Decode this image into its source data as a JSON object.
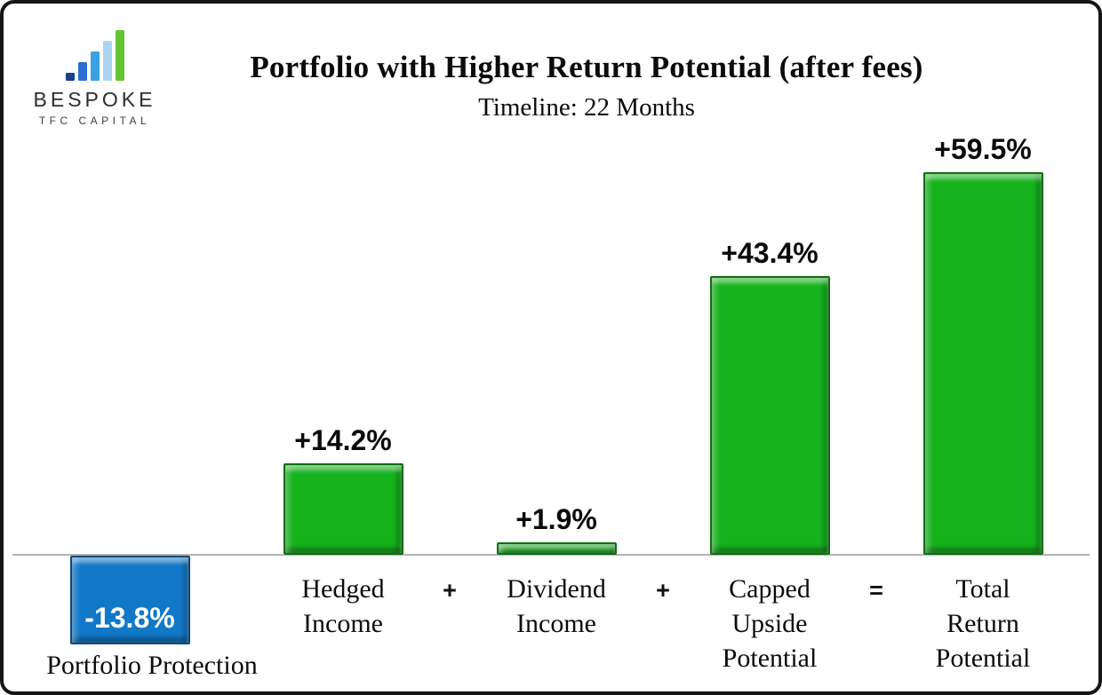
{
  "logo": {
    "name": "BESPOKE",
    "tagline": "TFC CAPITAL",
    "bar_colors": [
      "#17418F",
      "#2B6FD4",
      "#38A1E3",
      "#ABD4F0",
      "#63C433"
    ]
  },
  "header": {
    "title": "Portfolio with Higher Return Potential (after fees)",
    "subtitle": "Timeline: 22 Months"
  },
  "chart_data": {
    "type": "bar",
    "title": "Portfolio with Higher Return Potential (after fees)",
    "subtitle": "Timeline: 22 Months",
    "unit": "percent",
    "categories": [
      "Portfolio Protection",
      "Hedged Income",
      "Dividend Income",
      "Capped Upside Potential",
      "Total Return Potential"
    ],
    "category_lines": [
      [
        "Portfolio Protection"
      ],
      [
        "Hedged",
        "Income"
      ],
      [
        "Dividend",
        "Income"
      ],
      [
        "Capped",
        "Upside",
        "Potential"
      ],
      [
        "Total",
        "Return",
        "Potential"
      ]
    ],
    "values": [
      -13.8,
      14.2,
      1.9,
      43.4,
      59.5
    ],
    "value_labels": [
      "-13.8%",
      "+14.2%",
      "+1.9%",
      "+43.4%",
      "+59.5%"
    ],
    "operators": [
      "+",
      "+",
      "="
    ],
    "positive_color": "#15B21C",
    "negative_color": "#1178C8",
    "baseline": 0,
    "ylim": [
      -20,
      65
    ],
    "grid": false,
    "legend": false,
    "axis_line_color": "#B3B3B3"
  }
}
